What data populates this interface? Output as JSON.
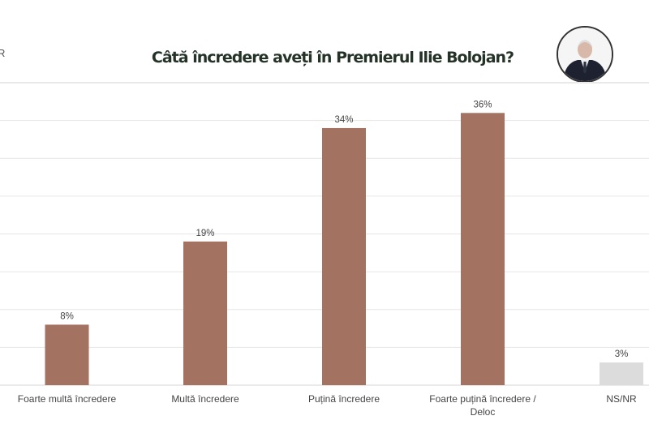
{
  "header": {
    "title": "Câtă încredere aveți în Premierul Ilie Bolojan?",
    "cut_text": "R"
  },
  "colors": {
    "bar": "#A47260",
    "bar_other": "#DCDCDC",
    "grid": "#E6E6E6"
  },
  "chart_data": {
    "type": "bar",
    "title": "Câtă încredere aveți în Premierul Ilie Bolojan?",
    "categories": [
      "Foarte multă încredere",
      "Multă încredere",
      "Puțină încredere",
      "Foarte puțină încredere / Deloc",
      "NS/NR"
    ],
    "values": [
      8,
      19,
      34,
      36,
      3
    ],
    "data_labels": [
      "8%",
      "19%",
      "34%",
      "36%",
      "3%"
    ],
    "unit": "%",
    "ylim": [
      0,
      40
    ],
    "grid": true,
    "grid_step": 5
  }
}
